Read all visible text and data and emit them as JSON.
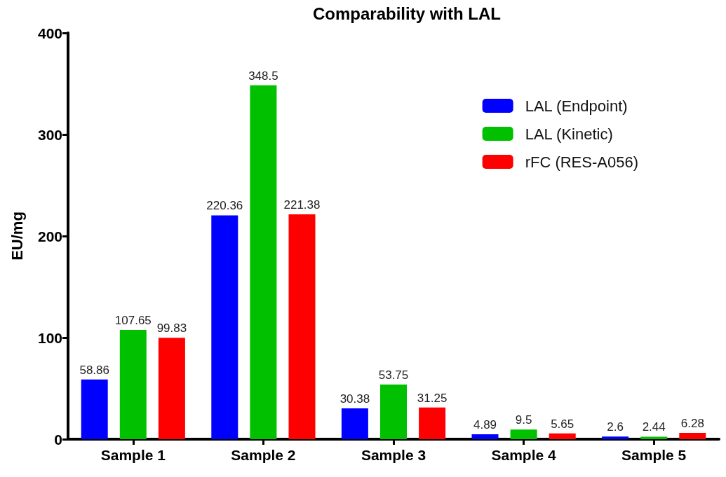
{
  "chart_data": {
    "type": "bar",
    "title": "Comparability with LAL",
    "ylabel": "EU/mg",
    "categories": [
      "Sample 1",
      "Sample 2",
      "Sample 3",
      "Sample 4",
      "Sample 5"
    ],
    "series": [
      {
        "name": "LAL (Endpoint)",
        "color": "#0000ff",
        "values": [
          58.86,
          220.36,
          30.38,
          4.89,
          2.6
        ]
      },
      {
        "name": "LAL (Kinetic)",
        "color": "#00c000",
        "values": [
          107.65,
          348.5,
          53.75,
          9.5,
          2.44
        ]
      },
      {
        "name": "rFC (RES-A056)",
        "color": "#ff0000",
        "values": [
          99.83,
          221.38,
          31.25,
          5.65,
          6.28
        ]
      }
    ],
    "ylim": [
      0,
      400
    ],
    "yticks": [
      0,
      100,
      200,
      300,
      400
    ],
    "grid": false,
    "legend": "top right",
    "data_labels": true
  }
}
